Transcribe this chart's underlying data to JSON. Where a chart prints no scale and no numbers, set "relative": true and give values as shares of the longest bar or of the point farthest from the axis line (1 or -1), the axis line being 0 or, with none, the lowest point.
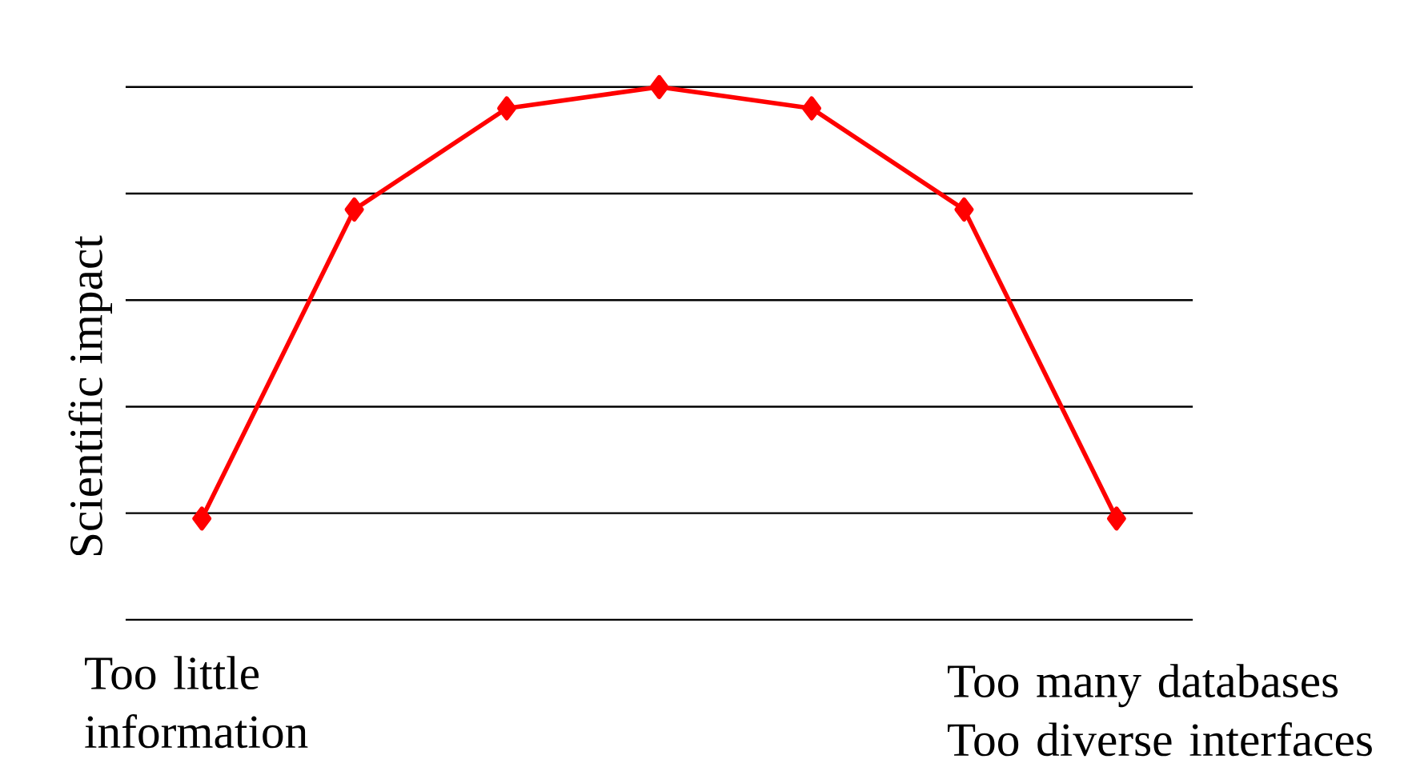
{
  "chart_data": {
    "type": "line",
    "relative": true,
    "ylabel": "Scientific impact",
    "categories": [
      null,
      null,
      null,
      null,
      null,
      null,
      null
    ],
    "series": [
      {
        "color": "#ff0000",
        "values": [
          0.19,
          0.77,
          0.96,
          1,
          0.96,
          0.77,
          0.19
        ]
      }
    ],
    "marker": "diamond",
    "line_style": "solid",
    "grid": "y",
    "annotations": [
      "Too little information",
      "Too many databases Too diverse interfaces"
    ]
  }
}
